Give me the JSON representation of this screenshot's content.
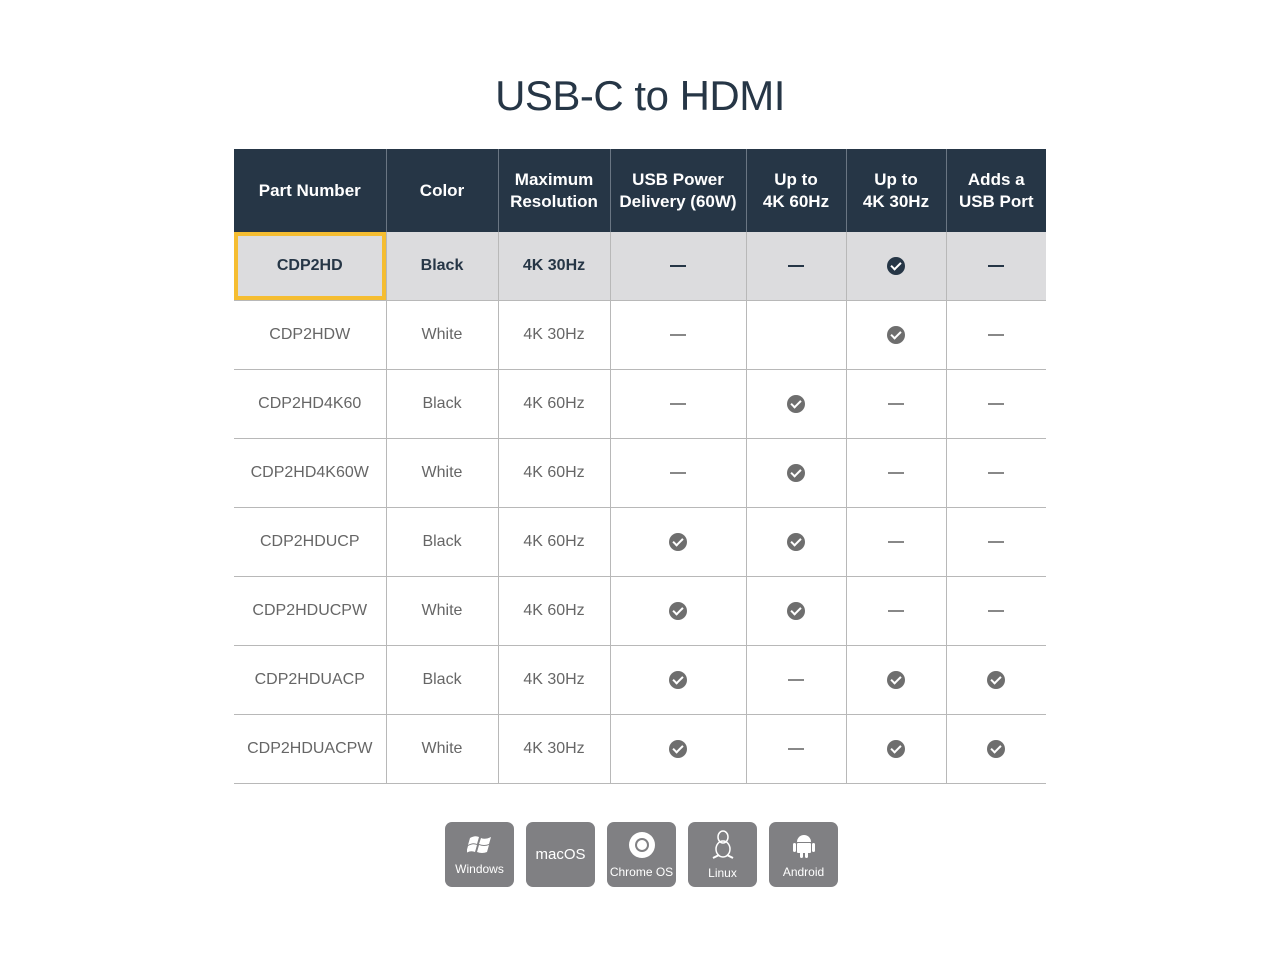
{
  "title": "USB-C to HDMI",
  "table": {
    "headers": [
      "Part Number",
      "Color",
      "Maximum\nResolution",
      "USB Power\nDelivery (60W)",
      "Up to\n4K 60Hz",
      "Up to\n4K 30Hz",
      "Adds a\nUSB Port"
    ],
    "rows": [
      {
        "part": "CDP2HD",
        "color": "Black",
        "res": "4K 30Hz",
        "pd": "dash",
        "k60": "dash",
        "k30": "check",
        "usb": "dash",
        "highlighted": true
      },
      {
        "part": "CDP2HDW",
        "color": "White",
        "res": "4K 30Hz",
        "pd": "dash",
        "k60": "",
        "k30": "check",
        "usb": "dash"
      },
      {
        "part": "CDP2HD4K60",
        "color": "Black",
        "res": "4K 60Hz",
        "pd": "dash",
        "k60": "check",
        "k30": "dash",
        "usb": "dash"
      },
      {
        "part": "CDP2HD4K60W",
        "color": "White",
        "res": "4K 60Hz",
        "pd": "dash",
        "k60": "check",
        "k30": "dash",
        "usb": "dash"
      },
      {
        "part": "CDP2HDUCP",
        "color": "Black",
        "res": "4K 60Hz",
        "pd": "check",
        "k60": "check",
        "k30": "dash",
        "usb": "dash"
      },
      {
        "part": "CDP2HDUCPW",
        "color": "White",
        "res": "4K 60Hz",
        "pd": "check",
        "k60": "check",
        "k30": "dash",
        "usb": "dash"
      },
      {
        "part": "CDP2HDUACP",
        "color": "Black",
        "res": "4K 30Hz",
        "pd": "check",
        "k60": "dash",
        "k30": "check",
        "usb": "check"
      },
      {
        "part": "CDP2HDUACPW",
        "color": "White",
        "res": "4K 30Hz",
        "pd": "check",
        "k60": "dash",
        "k30": "check",
        "usb": "check"
      }
    ]
  },
  "os": [
    {
      "label": "Windows",
      "icon": "windows-icon"
    },
    {
      "label": "macOS",
      "icon": ""
    },
    {
      "label": "Chrome OS",
      "icon": "chrome-icon"
    },
    {
      "label": "Linux",
      "icon": "linux-icon"
    },
    {
      "label": "Android",
      "icon": "android-icon"
    }
  ],
  "colors": {
    "header": "#263646",
    "highlight_border": "#f5bd31",
    "highlight_row": "#dcdcde",
    "badge": "#808083"
  }
}
